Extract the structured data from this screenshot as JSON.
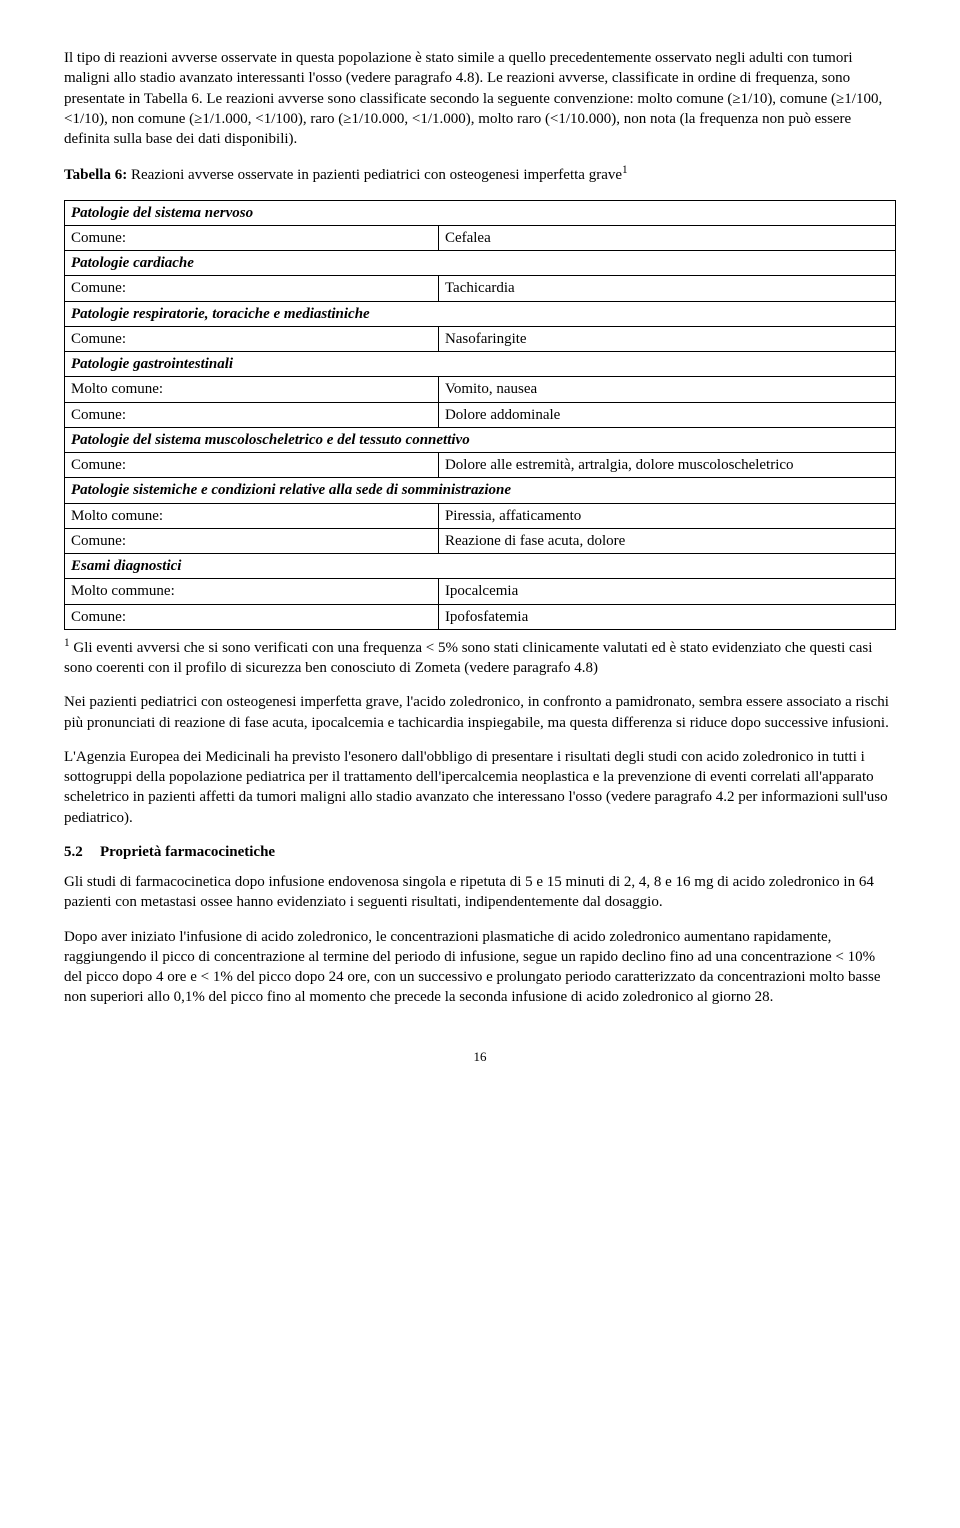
{
  "intro1": "Il tipo di reazioni avverse osservate in questa popolazione è stato simile a quello precedentemente osservato negli adulti con tumori maligni allo stadio avanzato interessanti l'osso (vedere paragrafo 4.8). Le reazioni avverse, classificate in ordine di frequenza, sono presentate in Tabella 6. Le reazioni avverse sono classificate secondo la seguente convenzione: molto comune (≥1/10), comune (≥1/100, <1/10), non comune (≥1/1.000, <1/100), raro (≥1/10.000, <1/1.000), molto raro (<1/10.000), non nota (la frequenza non può essere definita sulla base dei dati disponibili).",
  "table_title_pre": "Tabella 6:",
  "table_title_rest": " Reazioni avverse osservate in pazienti pediatrici con osteogenesi imperfetta grave",
  "table_title_sup": "1",
  "rows": [
    {
      "type": "header",
      "text": "Patologie del sistema nervoso"
    },
    {
      "type": "row",
      "freq": "Comune:",
      "val": "Cefalea"
    },
    {
      "type": "header",
      "text": "Patologie cardiache"
    },
    {
      "type": "row",
      "freq": "Comune:",
      "val": "Tachicardia"
    },
    {
      "type": "header",
      "text": "Patologie respiratorie, toraciche e mediastiniche"
    },
    {
      "type": "row",
      "freq": "Comune:",
      "val": "Nasofaringite"
    },
    {
      "type": "header",
      "text": "Patologie gastrointestinali"
    },
    {
      "type": "row",
      "freq": "Molto comune:",
      "val": "Vomito, nausea"
    },
    {
      "type": "row",
      "freq": "Comune:",
      "val": "Dolore addominale"
    },
    {
      "type": "header",
      "text": "Patologie del sistema muscoloscheletrico e del tessuto connettivo"
    },
    {
      "type": "row",
      "freq": "Comune:",
      "val": "Dolore alle estremità, artralgia, dolore muscoloscheletrico"
    },
    {
      "type": "header",
      "text": "Patologie sistemiche e condizioni relative alla sede di somministrazione"
    },
    {
      "type": "row",
      "freq": "Molto comune:",
      "val": "Piressia, affaticamento"
    },
    {
      "type": "row",
      "freq": "Comune:",
      "val": "Reazione di fase acuta, dolore"
    },
    {
      "type": "header",
      "text": "Esami diagnostici"
    },
    {
      "type": "row",
      "freq": "Molto commune:",
      "val": "Ipocalcemia"
    },
    {
      "type": "row",
      "freq": "Comune:",
      "val": "Ipofosfatemia"
    }
  ],
  "footnote_sup": "1",
  "footnote": " Gli eventi avversi che si sono verificati con una frequenza < 5% sono stati clinicamente valutati ed è stato evidenziato che questi casi sono coerenti con il profilo di sicurezza ben conosciuto di Zometa (vedere paragrafo 4.8)",
  "para2": "Nei pazienti pediatrici con osteogenesi imperfetta grave, l'acido zoledronico, in confronto a pamidronato, sembra essere associato a rischi più pronunciati di reazione di fase acuta, ipocalcemia e tachicardia inspiegabile, ma questa differenza si riduce dopo successive infusioni.",
  "para3": "L'Agenzia Europea dei Medicinali ha previsto l'esonero dall'obbligo di presentare i risultati degli studi con acido zoledronico in tutti i sottogruppi della popolazione pediatrica per il trattamento dell'ipercalcemia neoplastica e la prevenzione di eventi correlati all'apparato scheletrico in pazienti affetti da tumori maligni allo stadio avanzato che interessano l'osso (vedere paragrafo 4.2 per informazioni sull'uso pediatrico).",
  "section_num": "5.2",
  "section_title": "Proprietà farmacocinetiche",
  "para4": "Gli studi di farmacocinetica dopo infusione endovenosa singola e ripetuta di 5 e 15 minuti di 2, 4, 8 e 16 mg di acido zoledronico in 64 pazienti con metastasi ossee hanno evidenziato i seguenti risultati, indipendentemente dal dosaggio.",
  "para5": "Dopo aver iniziato l'infusione di acido zoledronico, le concentrazioni plasmatiche di acido zoledronico aumentano rapidamente, raggiungendo il picco di concentrazione al termine del periodo di infusione, segue un rapido declino fino ad una concentrazione < 10% del picco dopo 4 ore e < 1% del picco dopo 24 ore, con un successivo e prolungato periodo caratterizzato da concentrazioni molto basse non superiori allo 0,1% del picco fino al momento che precede la seconda infusione di acido zoledronico al giorno 28.",
  "page_number": "16"
}
